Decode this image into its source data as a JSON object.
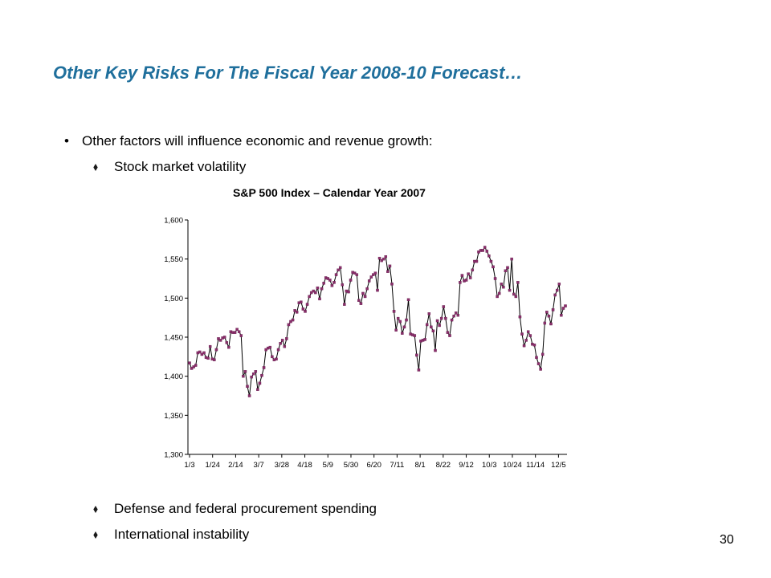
{
  "slide": {
    "title": "Other Key Risks For The Fiscal Year 2008-10 Forecast…",
    "bullet": "Other factors will influence economic and revenue growth:",
    "sub_bullets": [
      "Stock market volatility",
      "Defense and federal procurement spending",
      "International instability"
    ],
    "page_number": "30",
    "title_color": "#1f6f9c",
    "marker_color": "#8b2e6b"
  },
  "chart_data": {
    "type": "line",
    "title": "S&P 500 Index – Calendar Year 2007",
    "xlabel": "",
    "ylabel": "",
    "ylim": [
      1300,
      1600
    ],
    "yticks": [
      "1,300",
      "1,350",
      "1,400",
      "1,450",
      "1,500",
      "1,550",
      "1,600"
    ],
    "xticks": [
      "1/3",
      "1/24",
      "2/14",
      "3/7",
      "3/28",
      "4/18",
      "5/9",
      "5/30",
      "6/20",
      "7/11",
      "8/1",
      "8/22",
      "9/12",
      "10/3",
      "10/24",
      "11/14",
      "12/5"
    ],
    "grid": false,
    "series": [
      {
        "values": [
          1417,
          1410,
          1412,
          1414,
          1430,
          1431,
          1428,
          1430,
          1424,
          1423,
          1438,
          1422,
          1421,
          1434,
          1448,
          1446,
          1449,
          1450,
          1443,
          1437,
          1457,
          1456,
          1456,
          1460,
          1457,
          1452,
          1400,
          1406,
          1387,
          1375,
          1399,
          1403,
          1406,
          1383,
          1391,
          1401,
          1411,
          1434,
          1436,
          1437,
          1425,
          1421,
          1422,
          1434,
          1442,
          1446,
          1438,
          1448,
          1466,
          1470,
          1472,
          1484,
          1482,
          1494,
          1495,
          1486,
          1483,
          1492,
          1502,
          1507,
          1509,
          1507,
          1513,
          1499,
          1512,
          1519,
          1526,
          1525,
          1523,
          1516,
          1520,
          1530,
          1536,
          1539,
          1517,
          1492,
          1509,
          1508,
          1523,
          1533,
          1532,
          1530,
          1497,
          1493,
          1506,
          1502,
          1512,
          1522,
          1527,
          1530,
          1532,
          1510,
          1551,
          1548,
          1550,
          1553,
          1534,
          1541,
          1518,
          1483,
          1459,
          1474,
          1470,
          1455,
          1463,
          1472,
          1498,
          1454,
          1453,
          1452,
          1427,
          1408,
          1445,
          1446,
          1447,
          1466,
          1480,
          1463,
          1458,
          1433,
          1471,
          1465,
          1474,
          1489,
          1474,
          1456,
          1452,
          1472,
          1477,
          1481,
          1478,
          1520,
          1529,
          1522,
          1523,
          1531,
          1526,
          1536,
          1547,
          1547,
          1559,
          1561,
          1561,
          1565,
          1560,
          1554,
          1547,
          1540,
          1525,
          1502,
          1506,
          1518,
          1514,
          1535,
          1539,
          1510,
          1550,
          1505,
          1502,
          1520,
          1476,
          1454,
          1439,
          1446,
          1457,
          1452,
          1441,
          1440,
          1424,
          1416,
          1409,
          1428,
          1468,
          1482,
          1477,
          1467,
          1485,
          1504,
          1510,
          1518,
          1478,
          1487,
          1490
        ]
      }
    ]
  }
}
